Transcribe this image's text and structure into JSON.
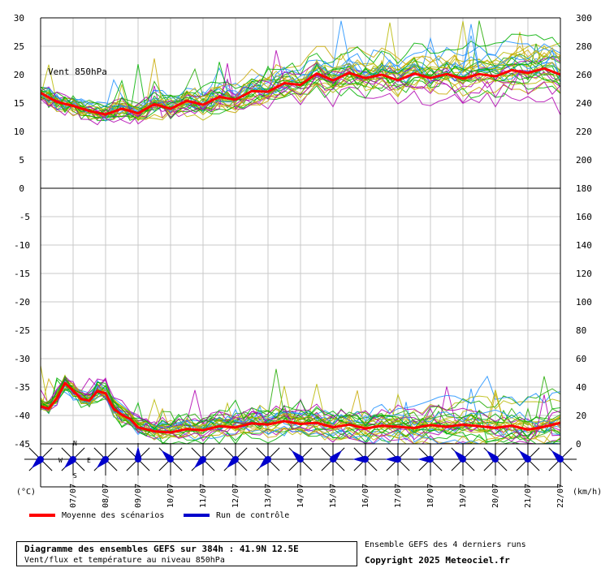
{
  "chart_data": [
    {
      "type": "line",
      "panel": "wind",
      "label": "Vent 850hPa",
      "left_axis": {
        "ticks": [
          30,
          25,
          20,
          15,
          10,
          5,
          0
        ],
        "range": [
          0,
          30
        ]
      },
      "right_axis": {
        "ticks": [
          300,
          280,
          260,
          240,
          220,
          200,
          180
        ],
        "range": [
          180,
          300
        ]
      },
      "x_step_hours": 6,
      "x_range_hours": [
        0,
        384
      ],
      "mean_series": {
        "name": "Moyenne des scénarios",
        "color": "#ff0000",
        "x": [
          0,
          12,
          24,
          36,
          48,
          60,
          72,
          84,
          96,
          108,
          120,
          132,
          144,
          156,
          168,
          180,
          192,
          204,
          216,
          228,
          240,
          252,
          264,
          276,
          288,
          300,
          312,
          324,
          336,
          348,
          360,
          372,
          384
        ],
        "values": [
          16.8,
          15.2,
          14.5,
          13.6,
          13.0,
          14.0,
          13.2,
          14.8,
          14.0,
          15.4,
          14.7,
          16.1,
          15.6,
          17.1,
          17.0,
          18.5,
          18.2,
          20.2,
          19.0,
          20.3,
          19.4,
          20.0,
          19.0,
          20.2,
          19.4,
          20.1,
          19.3,
          20.1,
          19.7,
          20.8,
          20.3,
          21.1,
          20.0
        ]
      },
      "ensemble": {
        "members": 31,
        "colors": [
          "#00b000",
          "#22aa00",
          "#c8a800",
          "#1e90ff",
          "#b000b0",
          "#b8b800"
        ],
        "spread": 2.8
      }
    },
    {
      "type": "line",
      "panel": "temperature",
      "left_axis": {
        "ticks": [
          0,
          -5,
          -10,
          -15,
          -20,
          -25,
          -30,
          -35,
          -40,
          -45
        ],
        "range": [
          -45,
          0
        ]
      },
      "right_axis": {
        "ticks": [
          180,
          160,
          140,
          120,
          100,
          80,
          60,
          40,
          20,
          0
        ],
        "range": [
          0,
          180
        ]
      },
      "x_step_hours": 6,
      "x_range_hours": [
        0,
        384
      ],
      "mean_series": {
        "name": "Moyenne des scénarios",
        "color": "#ff0000",
        "x": [
          0,
          6,
          12,
          18,
          24,
          30,
          36,
          42,
          48,
          54,
          60,
          66,
          72,
          84,
          96,
          108,
          120,
          132,
          144,
          156,
          168,
          180,
          192,
          204,
          216,
          228,
          240,
          252,
          264,
          276,
          288,
          300,
          312,
          324,
          336,
          348,
          360,
          372,
          384
        ],
        "values": [
          -38.4,
          -38.8,
          -37.0,
          -34.3,
          -35.6,
          -37.1,
          -37.4,
          -35.7,
          -36.1,
          -38.8,
          -39.9,
          -40.6,
          -42.1,
          -42.8,
          -43.0,
          -42.4,
          -42.6,
          -41.9,
          -42.1,
          -41.4,
          -41.6,
          -41.0,
          -41.5,
          -41.3,
          -42.1,
          -41.6,
          -42.3,
          -41.8,
          -42.0,
          -42.2,
          -41.7,
          -42.0,
          -41.6,
          -41.9,
          -42.2,
          -41.8,
          -42.5,
          -42.0,
          -41.3
        ]
      },
      "ensemble": {
        "members": 31,
        "colors": [
          "#00b000",
          "#22aa00",
          "#c8a800",
          "#1e90ff",
          "#b000b0",
          "#b8b800"
        ],
        "spread": 2.5
      }
    }
  ],
  "x_axis": {
    "dates": [
      {
        "label": "07/07",
        "hour": 24
      },
      {
        "label": "08/07",
        "hour": 48
      },
      {
        "label": "09/07",
        "hour": 72
      },
      {
        "label": "10/07",
        "hour": 96
      },
      {
        "label": "11/07",
        "hour": 120
      },
      {
        "label": "12/07",
        "hour": 144
      },
      {
        "label": "13/07",
        "hour": 168
      },
      {
        "label": "14/07",
        "hour": 192
      },
      {
        "label": "15/07",
        "hour": 216
      },
      {
        "label": "16/07",
        "hour": 240
      },
      {
        "label": "17/07",
        "hour": 264
      },
      {
        "label": "18/07",
        "hour": 288
      },
      {
        "label": "19/07",
        "hour": 312
      },
      {
        "label": "20/07",
        "hour": 336
      },
      {
        "label": "21/07",
        "hour": 360
      },
      {
        "label": "22/07",
        "hour": 384
      }
    ]
  },
  "wind_roses": {
    "rose_color": "#0000cc",
    "directions": [
      {
        "hour": 0,
        "dir": "SW"
      },
      {
        "hour": 24,
        "dir": "SW"
      },
      {
        "hour": 48,
        "dir": "SW"
      },
      {
        "hour": 72,
        "dir": "N"
      },
      {
        "hour": 96,
        "dir": "NW"
      },
      {
        "hour": 120,
        "dir": "SW"
      },
      {
        "hour": 144,
        "dir": "SW"
      },
      {
        "hour": 168,
        "dir": "SW"
      },
      {
        "hour": 192,
        "dir": "NW"
      },
      {
        "hour": 216,
        "dir": "NE"
      },
      {
        "hour": 240,
        "dir": "W"
      },
      {
        "hour": 264,
        "dir": "W"
      },
      {
        "hour": 288,
        "dir": "W"
      },
      {
        "hour": 312,
        "dir": "NW"
      },
      {
        "hour": 336,
        "dir": "NW"
      },
      {
        "hour": 360,
        "dir": "NW"
      },
      {
        "hour": 384,
        "dir": "NW"
      }
    ],
    "compass_labels": {
      "n": "N",
      "s": "S",
      "e": "E",
      "w": "W"
    }
  },
  "units": {
    "left": "(°C)",
    "right": "(km/h)"
  },
  "legend": {
    "mean": {
      "label": "Moyenne des scénarios",
      "color": "#ff0000"
    },
    "control": {
      "label": "Run de contrôle",
      "color": "#0000cc"
    }
  },
  "caption": {
    "title": "Diagramme des ensembles GEFS sur 384h : 41.9N 12.5E",
    "subtitle": "Vent/flux et température au niveau 850hPa"
  },
  "runs_note": "Ensemble GEFS des 4 derniers runs",
  "copyright": "Copyright 2025 Meteociel.fr"
}
